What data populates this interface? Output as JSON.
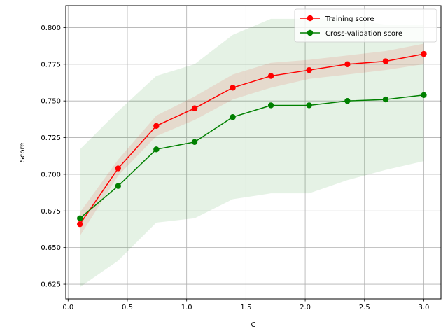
{
  "chart_data": {
    "type": "line",
    "title": "",
    "xlabel": "C",
    "ylabel": "Score",
    "xlim": [
      -0.0195,
      3.145
    ],
    "ylim": [
      0.615,
      0.815
    ],
    "xticks": [
      0.0,
      0.5,
      1.0,
      1.5,
      2.0,
      2.5,
      3.0
    ],
    "xtick_labels": [
      "0.0",
      "0.5",
      "1.0",
      "1.5",
      "2.0",
      "2.5",
      "3.0"
    ],
    "yticks": [
      0.625,
      0.65,
      0.675,
      0.7,
      0.725,
      0.75,
      0.775,
      0.8
    ],
    "ytick_labels": [
      "0.625",
      "0.650",
      "0.675",
      "0.700",
      "0.725",
      "0.750",
      "0.775",
      "0.800"
    ],
    "grid": true,
    "legend_position": "top-right",
    "x": [
      0.1,
      0.422,
      0.744,
      1.067,
      1.389,
      1.711,
      2.033,
      2.356,
      2.678,
      3.0
    ],
    "series": [
      {
        "name": "Training score",
        "color": "#ff0000",
        "band_color": "#ff0000",
        "values": [
          0.666,
          0.704,
          0.733,
          0.745,
          0.759,
          0.767,
          0.771,
          0.775,
          0.777,
          0.782
        ],
        "lower": [
          0.658,
          0.699,
          0.726,
          0.737,
          0.751,
          0.759,
          0.765,
          0.768,
          0.771,
          0.775
        ],
        "upper": [
          0.674,
          0.71,
          0.74,
          0.753,
          0.768,
          0.776,
          0.778,
          0.781,
          0.784,
          0.789
        ]
      },
      {
        "name": "Cross-validation score",
        "color": "#008000",
        "band_color": "#008000",
        "values": [
          0.67,
          0.692,
          0.717,
          0.722,
          0.739,
          0.747,
          0.747,
          0.75,
          0.751,
          0.754
        ],
        "lower": [
          0.623,
          0.641,
          0.667,
          0.67,
          0.683,
          0.687,
          0.687,
          0.696,
          0.703,
          0.709
        ],
        "upper": [
          0.717,
          0.743,
          0.767,
          0.775,
          0.795,
          0.806,
          0.806,
          0.806,
          0.802,
          0.802
        ]
      }
    ]
  }
}
